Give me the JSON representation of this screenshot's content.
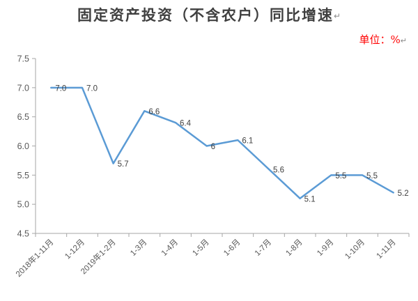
{
  "title": "固定资产投资（不含农户）同比增速",
  "paragraph_mark": "↵",
  "unit_label": "单位：%",
  "colors": {
    "background": "#FFFFFF",
    "line": "#5B9BD5",
    "title_text": "#3F3F3F",
    "unit_text": "#FF0000",
    "axis": "#A6A6A6",
    "tick_label": "#595959",
    "data_label": "#404040",
    "paragraph_mark": "#8A8A8A"
  },
  "chart_data": {
    "type": "line",
    "title": "固定资产投资（不含农户）同比增速",
    "unit": "单位：%",
    "categories": [
      "2018年1-11月",
      "1-12月",
      "2019年1-2月",
      "1-3月",
      "1-4月",
      "1-5月",
      "1-6月",
      "1-7月",
      "1-8月",
      "1-9月",
      "1-10月",
      "1-11月"
    ],
    "values": [
      7.0,
      7.0,
      5.7,
      6.6,
      6.4,
      6,
      6.1,
      5.6,
      5.1,
      5.5,
      5.5,
      5.2
    ],
    "data_labels": [
      "7.0",
      "7.0",
      "5.7",
      "6.6",
      "6.4",
      "6",
      "6.1",
      "5.6",
      "5.1",
      "5.5",
      "5.5",
      "5.2"
    ],
    "xlabel": "",
    "ylabel": "",
    "ylim": [
      4.5,
      7.5
    ],
    "ytick_step": 0.5,
    "ytick_labels": [
      "4.5",
      "5.0",
      "5.5",
      "6.0",
      "6.5",
      "7.0",
      "7.5"
    ],
    "grid": false,
    "legend": "none",
    "markers": "none",
    "x_label_rotation": -45
  }
}
